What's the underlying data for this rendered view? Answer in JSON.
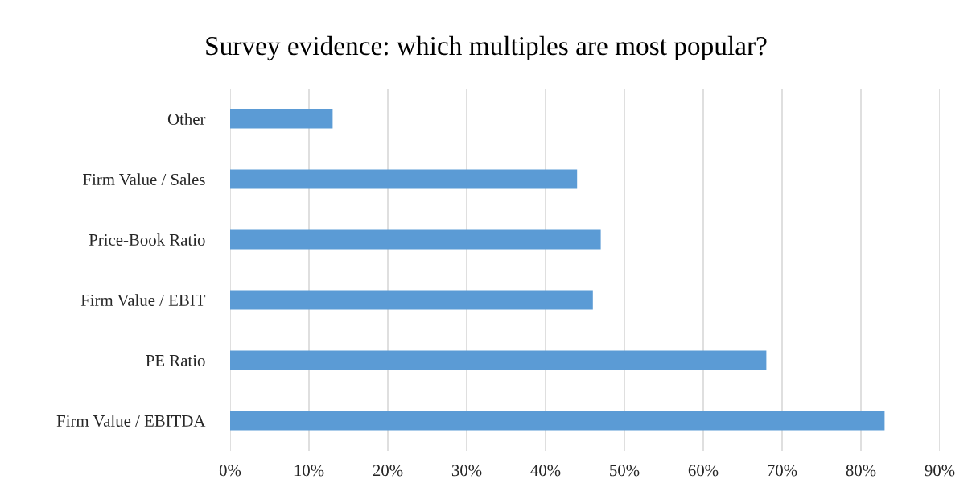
{
  "chart_data": {
    "type": "bar",
    "orientation": "horizontal",
    "title": "Survey evidence: which multiples are most popular?",
    "categories": [
      "Other",
      "Firm Value / Sales",
      "Price-Book Ratio",
      "Firm Value / EBIT",
      "PE Ratio",
      "Firm Value / EBITDA"
    ],
    "values": [
      13,
      44,
      47,
      46,
      68,
      83
    ],
    "color": "#5b9bd5",
    "xlim": [
      0,
      90
    ],
    "xticks": [
      {
        "value": 0,
        "label": "0%"
      },
      {
        "value": 10,
        "label": "10%"
      },
      {
        "value": 20,
        "label": "20%"
      },
      {
        "value": 30,
        "label": "30%"
      },
      {
        "value": 40,
        "label": "40%"
      },
      {
        "value": 50,
        "label": "50%"
      },
      {
        "value": 60,
        "label": "60%"
      },
      {
        "value": 70,
        "label": "70%"
      },
      {
        "value": 80,
        "label": "80%"
      },
      {
        "value": 90,
        "label": "90%"
      }
    ],
    "grid": "x",
    "legend": false
  }
}
